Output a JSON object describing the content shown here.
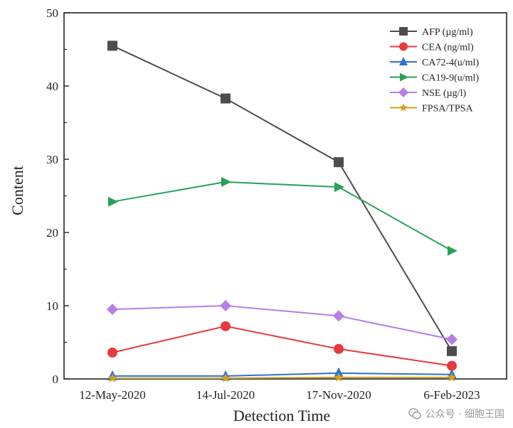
{
  "chart_data": {
    "type": "line",
    "categories": [
      "12-May-2020",
      "14-Jul-2020",
      "17-Nov-2020",
      "6-Feb-2023"
    ],
    "xlabel": "Detection Time",
    "ylabel": "Content",
    "ylim": [
      0,
      50
    ],
    "yticks": [
      0,
      10,
      20,
      30,
      40,
      50
    ],
    "grid": false,
    "legend_position": "top-right",
    "series": [
      {
        "name": "AFP (µg/ml)",
        "values": [
          45.5,
          38.3,
          29.6,
          3.8
        ],
        "color": "#4d4d4d",
        "marker": "square"
      },
      {
        "name": "CEA (ng/ml)",
        "values": [
          3.6,
          7.2,
          4.1,
          1.8
        ],
        "color": "#e8393c",
        "marker": "circle"
      },
      {
        "name": "CA72-4(u/ml)",
        "values": [
          0.4,
          0.4,
          0.8,
          0.6
        ],
        "color": "#2f6fd6",
        "marker": "triangle-up"
      },
      {
        "name": "CA19-9(u/ml)",
        "values": [
          24.2,
          26.9,
          26.2,
          17.5
        ],
        "color": "#27a05a",
        "marker": "triangle-right"
      },
      {
        "name": "NSE (µg/l)",
        "values": [
          9.5,
          10.0,
          8.6,
          5.4
        ],
        "color": "#b77ee6",
        "marker": "diamond"
      },
      {
        "name": "FPSA/TPSA",
        "values": [
          0.1,
          0.1,
          0.2,
          0.2
        ],
        "color": "#d1a21f",
        "marker": "star"
      }
    ]
  },
  "watermark": {
    "text": "公众号 · 细胞王国",
    "icon": "wechat-icon"
  }
}
